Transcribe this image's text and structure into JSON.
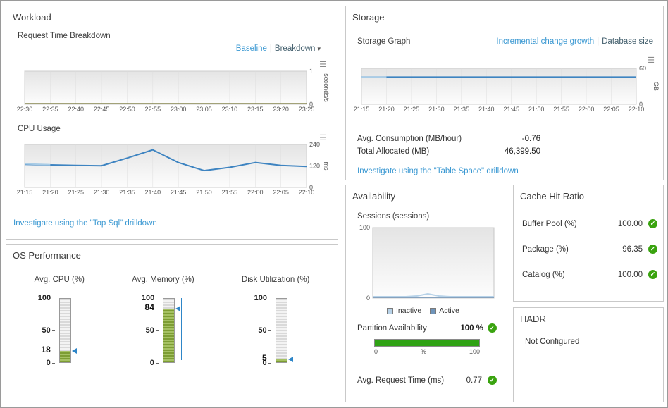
{
  "icons": {
    "caret_down": "▾",
    "chart_menu": "☰",
    "check": "✓"
  },
  "workload": {
    "title": "Workload",
    "request_time": {
      "subtitle": "Request Time Breakdown",
      "baseline_link": "Baseline",
      "separator": "|",
      "breakdown_label": "Breakdown",
      "chart": {
        "type": "line",
        "x_ticks": [
          "22:30",
          "22:35",
          "22:40",
          "22:45",
          "22:50",
          "22:55",
          "23:00",
          "23:05",
          "23:10",
          "23:15",
          "23:20",
          "23:25"
        ],
        "y_ticks": [
          0,
          1
        ],
        "ylim": [
          0,
          1
        ],
        "ylabel": "seconds/s",
        "axis_side": "right",
        "series": [
          {
            "name": "request-time",
            "color": "#6b6b2a",
            "width": 1.3,
            "values": [
              0.02,
              0.02,
              0.02,
              0.02,
              0.02,
              0.02,
              0.02,
              0.02,
              0.02,
              0.02,
              0.02,
              0.02
            ]
          }
        ]
      }
    },
    "cpu_usage": {
      "subtitle": "CPU Usage",
      "chart": {
        "type": "line",
        "x_ticks": [
          "21:15",
          "21:20",
          "21:25",
          "21:30",
          "21:35",
          "21:40",
          "21:45",
          "21:50",
          "21:55",
          "22:00",
          "22:05",
          "22:10"
        ],
        "y_ticks": [
          0,
          120,
          240
        ],
        "ylim": [
          0,
          240
        ],
        "ylabel": "ms",
        "axis_side": "right",
        "series": [
          {
            "name": "cpu-time",
            "color": "#3e84c1",
            "width": 2,
            "values": [
              129,
              126,
              123,
              121,
              164,
              210,
              139,
              94,
              112,
              139,
              123,
              117
            ]
          },
          {
            "name": "cpu-time-lead",
            "color": "#a9cce6",
            "width": 2,
            "values": [
              132,
              127,
              null,
              null,
              null,
              null,
              null,
              null,
              null,
              null,
              null,
              null
            ]
          }
        ]
      }
    },
    "drilldown_link": "Investigate using the \"Top Sql\" drilldown"
  },
  "os_performance": {
    "title": "OS Performance",
    "gauges": [
      {
        "label": "Avg. CPU (%)",
        "value": 18,
        "ticks": {
          "top": "100",
          "mid": "50",
          "bottom": "0"
        }
      },
      {
        "label": "Avg. Memory (%)",
        "value": 84,
        "range_line": true,
        "ticks": {
          "top": "100",
          "mid": "50",
          "bottom": "0"
        }
      },
      {
        "label": "Disk Utilization (%)",
        "value": 5,
        "ticks": {
          "top": "100",
          "mid": "50",
          "bottom": "0"
        }
      }
    ]
  },
  "storage": {
    "title": "Storage",
    "subtitle": "Storage Graph",
    "incremental_link": "Incremental change growth",
    "separator": "|",
    "database_size_label": "Database size",
    "chart": {
      "type": "line",
      "x_ticks": [
        "21:15",
        "21:20",
        "21:25",
        "21:30",
        "21:35",
        "21:40",
        "21:45",
        "21:50",
        "21:55",
        "22:00",
        "22:05",
        "22:10"
      ],
      "y_ticks": [
        0,
        60
      ],
      "ylim": [
        0,
        60
      ],
      "ylabel": "GB",
      "axis_side": "right",
      "series": [
        {
          "name": "database-size",
          "color": "#3e84c1",
          "width": 2.5,
          "values": [
            45.2,
            45.2,
            45.2,
            45.2,
            45.2,
            45.2,
            45.2,
            45.2,
            45.2,
            45.2,
            45.2,
            45.2
          ]
        },
        {
          "name": "database-size-lead",
          "color": "#a9cce6",
          "width": 2.5,
          "values": [
            45.2,
            45.2,
            null,
            null,
            null,
            null,
            null,
            null,
            null,
            null,
            null,
            null
          ]
        }
      ]
    },
    "metrics": [
      {
        "label": "Avg. Consumption (MB/hour)",
        "value": "-0.76"
      },
      {
        "label": "Total Allocated (MB)",
        "value": "46,399.50"
      }
    ],
    "drilldown_link": "Investigate using the \"Table Space\" drilldown"
  },
  "availability": {
    "title": "Availability",
    "subtitle": "Sessions (sessions)",
    "chart": {
      "type": "line",
      "x_ticks": [],
      "y_ticks": [
        0,
        100
      ],
      "ylim": [
        0,
        100
      ],
      "axis_side": "left",
      "series": [
        {
          "name": "Inactive",
          "color": "#b7d2e8",
          "width": 2,
          "values": [
            2,
            2,
            2,
            2,
            3,
            6,
            3,
            2,
            2,
            2,
            2,
            2
          ]
        },
        {
          "name": "Active",
          "color": "#6f94ba",
          "width": 1.5,
          "values": [
            1,
            1,
            1,
            1,
            1,
            1,
            1,
            1,
            1,
            1,
            1,
            1
          ]
        }
      ]
    },
    "legend": [
      {
        "label": "Inactive",
        "color": "#b7d2e8"
      },
      {
        "label": "Active",
        "color": "#6f94ba"
      }
    ],
    "partition": {
      "label": "Partition Availability",
      "value": "100 %",
      "percent": 100,
      "scale": [
        "0",
        "%",
        "100"
      ]
    },
    "request_time": {
      "label": "Avg. Request Time (ms)",
      "value": "0.77"
    }
  },
  "cache_hit_ratio": {
    "title": "Cache Hit Ratio",
    "metrics": [
      {
        "label": "Buffer Pool (%)",
        "value": "100.00"
      },
      {
        "label": "Package (%)",
        "value": "96.35"
      },
      {
        "label": "Catalog (%)",
        "value": "100.00"
      }
    ]
  },
  "hadr": {
    "title": "HADR",
    "status": "Not Configured"
  }
}
